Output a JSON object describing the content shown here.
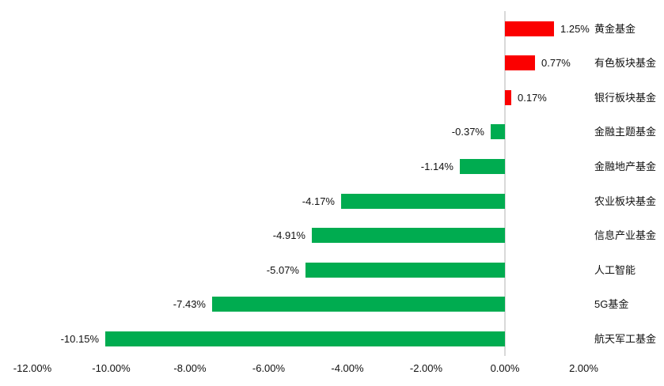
{
  "chart_data": {
    "type": "bar",
    "orientation": "horizontal",
    "title": "",
    "xlabel": "",
    "ylabel": "",
    "xlim": [
      -12,
      2
    ],
    "grid": "zero-line-only",
    "legend": "none",
    "categories": [
      "黄金基金",
      "有色板块基金",
      "银行板块基金",
      "金融主题基金",
      "金融地产基金",
      "农业板块基金",
      "信息产业基金",
      "人工智能",
      "5G基金",
      "航天军工基金"
    ],
    "values": [
      1.25,
      0.77,
      0.17,
      -0.37,
      -1.14,
      -4.17,
      -4.91,
      -5.07,
      -7.43,
      -10.15
    ],
    "value_labels": [
      "1.25%",
      "0.77%",
      "0.17%",
      "-0.37%",
      "-1.14%",
      "-4.17%",
      "-4.91%",
      "-5.07%",
      "-7.43%",
      "-10.15%"
    ],
    "x_tick_labels": [
      "-12.00%",
      "-10.00%",
      "-8.00%",
      "-6.00%",
      "-4.00%",
      "-2.00%",
      "0.00%",
      "2.00%"
    ],
    "x_tick_values": [
      -12,
      -10,
      -8,
      -6,
      -4,
      -2,
      0,
      2
    ],
    "colors": {
      "positive_bar": "#FB0000",
      "negative_bar": "#00AC50",
      "gridline": "#D9D9D9",
      "text": "#111111"
    }
  }
}
